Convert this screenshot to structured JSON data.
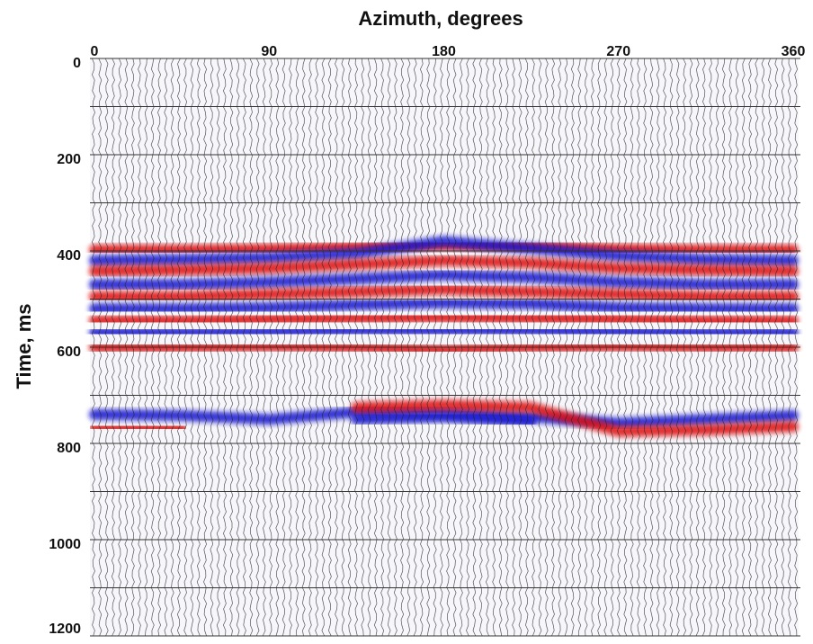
{
  "chart_data": {
    "type": "seismic",
    "title": "Azimuth, degrees",
    "y_label": "Time, ms",
    "xlim": [
      0,
      360
    ],
    "xticks": [
      0,
      90,
      180,
      270,
      360
    ],
    "ylim": [
      0,
      1200
    ],
    "yticks": [
      0,
      200,
      400,
      600,
      800,
      1000,
      1200
    ],
    "ygrid": [
      0,
      100,
      200,
      300,
      400,
      500,
      600,
      700,
      800,
      900,
      1000,
      1100,
      1200
    ],
    "y_reversed": true,
    "event_azimuths": [
      0,
      45,
      90,
      135,
      180,
      225,
      270,
      315,
      360
    ],
    "events": [
      {
        "color": "#e01010",
        "times": [
          398,
          398,
          396,
          392,
          388,
          390,
          396,
          398,
          398
        ]
      },
      {
        "color": "#1414d0",
        "times": [
          420,
          418,
          414,
          405,
          380,
          395,
          410,
          418,
          420
        ]
      },
      {
        "color": "#e01010",
        "times": [
          442,
          440,
          436,
          428,
          420,
          425,
          436,
          440,
          442
        ]
      },
      {
        "color": "#1414d0",
        "times": [
          470,
          470,
          465,
          458,
          450,
          455,
          465,
          470,
          470
        ]
      },
      {
        "color": "#e01010",
        "times": [
          495,
          495,
          490,
          485,
          480,
          485,
          490,
          495,
          495
        ]
      },
      {
        "color": "#1414d0",
        "times": [
          520,
          520,
          518,
          512,
          508,
          510,
          518,
          520,
          520
        ]
      },
      {
        "color": "#e01010",
        "times": [
          545,
          545,
          542,
          540,
          538,
          540,
          542,
          545,
          545
        ]
      },
      {
        "color": "#1414d0",
        "times": [
          570,
          570,
          568,
          565,
          565,
          565,
          568,
          570,
          570
        ]
      },
      {
        "color": "#e01010",
        "times": [
          600,
          600,
          598,
          600,
          605,
          600,
          598,
          600,
          600
        ]
      },
      {
        "color": "#1414d0",
        "times": [
          740,
          742,
          750,
          735,
          735,
          745,
          758,
          750,
          742
        ]
      },
      {
        "color": "#e01010",
        "times": [
          765,
          768,
          null,
          725,
          720,
          725,
          775,
          772,
          765
        ]
      },
      {
        "color": "#1414d0",
        "times": [
          null,
          null,
          null,
          750,
          745,
          755,
          null,
          null,
          null
        ]
      }
    ]
  }
}
